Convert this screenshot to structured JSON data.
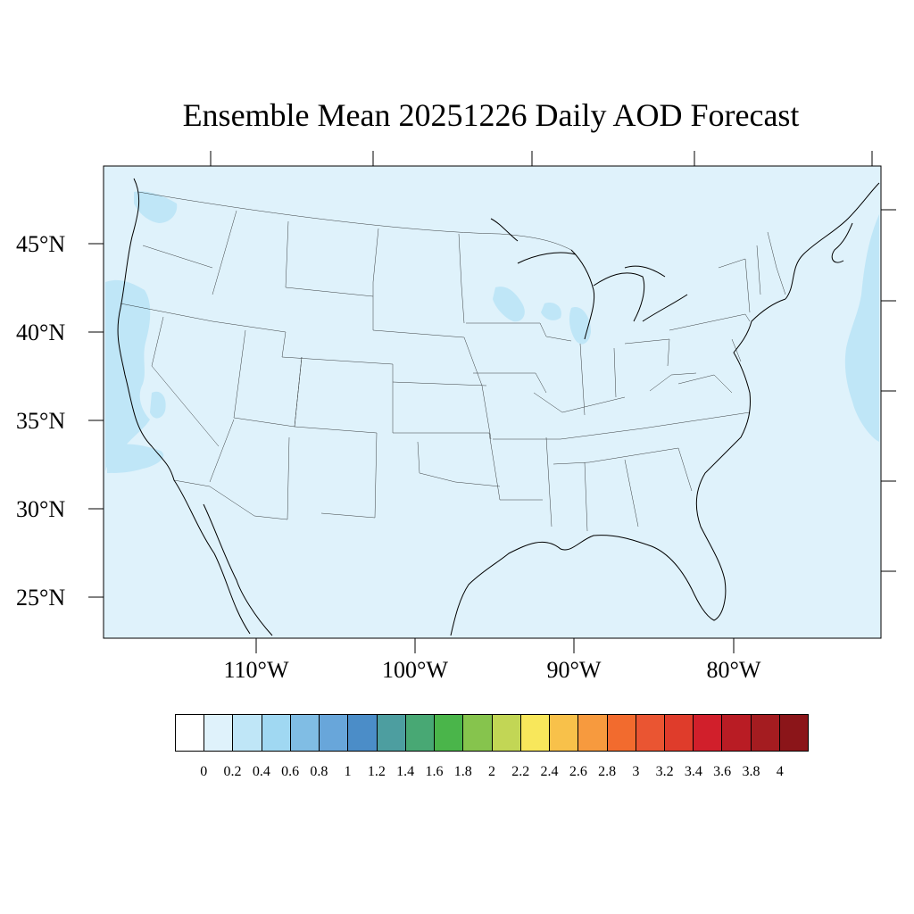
{
  "title": "Ensemble Mean 20251226 Daily AOD Forecast",
  "map": {
    "projection": "lambert-like",
    "background_color": "#dff2fb",
    "land_aod_fill": "#dff2fb",
    "enhanced_aod_fill": "#bfe6f7",
    "line_color": "#000000"
  },
  "lat_labels": [
    "45°N",
    "40°N",
    "35°N",
    "30°N",
    "25°N"
  ],
  "lon_labels": [
    "110°W",
    "100°W",
    "90°W",
    "80°W"
  ],
  "colorbar": {
    "colors": [
      "#ffffff",
      "#dff2fb",
      "#bfe6f7",
      "#a0d8f2",
      "#80bde4",
      "#68a6da",
      "#4b8dc8",
      "#4d9ea0",
      "#48a874",
      "#4ab54a",
      "#86c44d",
      "#c2d655",
      "#f8e75b",
      "#f8c14a",
      "#f79a3e",
      "#f26b2e",
      "#ea5532",
      "#df3c2b",
      "#d11f2b",
      "#b91c24",
      "#a41c20",
      "#8b1519"
    ],
    "labels": [
      "0",
      "0.2",
      "0.4",
      "0.6",
      "0.8",
      "1",
      "1.2",
      "1.4",
      "1.6",
      "1.8",
      "2",
      "2.2",
      "2.4",
      "2.6",
      "2.8",
      "3",
      "3.2",
      "3.4",
      "3.6",
      "3.8",
      "4"
    ]
  }
}
